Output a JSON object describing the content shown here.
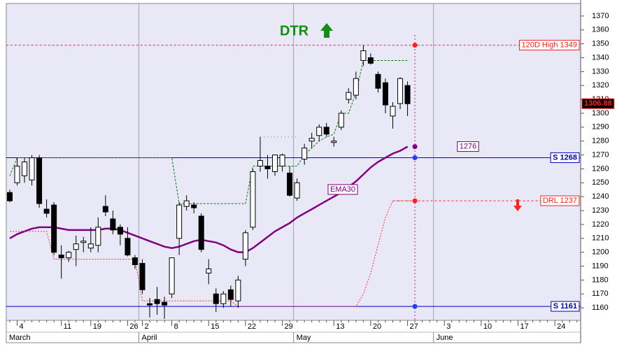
{
  "chart_data": {
    "type": "candlestick",
    "annotation": "DTR",
    "annotation_color": "#109010",
    "categories": [
      null,
      "4",
      null,
      null,
      null,
      null,
      null,
      "11",
      null,
      null,
      null,
      "19",
      null,
      null,
      null,
      null,
      "26",
      null,
      "2",
      null,
      null,
      null,
      "8",
      null,
      null,
      null,
      null,
      "15",
      null,
      null,
      null,
      null,
      "22",
      null,
      null,
      null,
      null,
      "29",
      null,
      null,
      null,
      null,
      null,
      null,
      "13",
      null,
      null,
      null,
      null,
      "20",
      null,
      null,
      null,
      null,
      "27",
      null,
      null,
      null,
      null,
      "3",
      null,
      null,
      null,
      null,
      "10",
      null,
      null,
      null,
      null,
      "17",
      null,
      null,
      null,
      null,
      "24",
      null,
      null,
      null
    ],
    "category_groups": [
      "March",
      null,
      null,
      null,
      null,
      null,
      null,
      null,
      null,
      null,
      null,
      null,
      null,
      null,
      null,
      null,
      null,
      null,
      "April",
      null,
      null,
      null,
      null,
      null,
      null,
      null,
      null,
      null,
      null,
      null,
      null,
      null,
      null,
      null,
      null,
      null,
      null,
      null,
      null,
      "May",
      null,
      null,
      null,
      null,
      null,
      null,
      null,
      null,
      null,
      null,
      null,
      null,
      null,
      null,
      null,
      null,
      null,
      null,
      "June",
      null,
      null,
      null,
      null,
      null,
      null,
      null,
      null,
      null,
      null,
      null,
      null,
      null,
      null,
      null,
      null,
      null,
      null,
      null
    ],
    "open": [
      1243,
      1250,
      1255,
      1252,
      1268,
      1231,
      1234,
      1198,
      1196,
      1202,
      1207,
      1203,
      1205,
      1233,
      1224,
      1218,
      1210,
      1196,
      1192,
      1163,
      1166,
      1164,
      1170,
      1210,
      1233,
      1234,
      1226,
      1185,
      1170,
      1163,
      1173,
      1165,
      1195,
      1218,
      1262,
      1262,
      1258,
      1262,
      1257,
      1239,
      1267,
      1280,
      1284,
      1290,
      1279,
      1290,
      1310,
      1313,
      1338,
      1340,
      1328,
      1322,
      1298,
      1307,
      1320,
      null,
      null,
      null,
      null,
      null,
      null,
      null,
      null,
      null,
      null,
      null,
      null,
      null,
      null,
      null,
      null,
      null,
      null,
      null,
      null,
      null,
      null,
      null
    ],
    "high": [
      1245,
      1268,
      1268,
      1270,
      1270,
      1238,
      1236,
      1205,
      1201,
      1212,
      1211,
      1218,
      1225,
      1241,
      1230,
      1220,
      1218,
      1198,
      1195,
      1167,
      1175,
      1168,
      1196,
      1236,
      1241,
      1236,
      1228,
      1195,
      1174,
      1172,
      1176,
      1183,
      1216,
      1260,
      1283,
      1270,
      1270,
      1271,
      1262,
      1253,
      1278,
      1286,
      1292,
      1293,
      1283,
      1302,
      1318,
      1330,
      1349,
      1343,
      1330,
      1325,
      1308,
      1326,
      1323,
      null,
      null,
      null,
      null,
      null,
      null,
      null,
      null,
      null,
      null,
      null,
      null,
      null,
      null,
      null,
      null,
      null,
      null,
      null,
      null,
      null,
      null,
      null
    ],
    "low": [
      1236,
      1248,
      1250,
      1248,
      1232,
      1225,
      1198,
      1181,
      1193,
      1190,
      1200,
      1200,
      1200,
      1226,
      1213,
      1205,
      1197,
      1188,
      1170,
      1153,
      1155,
      1152,
      1167,
      1198,
      1230,
      1228,
      1200,
      1177,
      1157,
      1160,
      1161,
      1160,
      1190,
      1216,
      1258,
      1253,
      1255,
      1258,
      1240,
      1237,
      1263,
      1275,
      1280,
      1283,
      1276,
      1288,
      1307,
      1310,
      1334,
      1335,
      1315,
      1300,
      1289,
      1303,
      1298,
      null,
      null,
      null,
      null,
      null,
      null,
      null,
      null,
      null,
      null,
      null,
      null,
      null,
      null,
      null,
      null,
      null,
      null,
      null,
      null,
      null,
      null,
      null
    ],
    "close": [
      1237,
      1262,
      1265,
      1268,
      1235,
      1228,
      1200,
      1196,
      1200,
      1206,
      1208,
      1206,
      1218,
      1229,
      1216,
      1213,
      1198,
      1191,
      1173,
      1162,
      1163,
      1162,
      1196,
      1234,
      1237,
      1232,
      1202,
      1188,
      1163,
      1170,
      1166,
      1180,
      1214,
      1258,
      1266,
      1260,
      1270,
      1270,
      1241,
      1250,
      1275,
      1282,
      1290,
      1285,
      1280,
      1300,
      1315,
      1325,
      1345,
      1336,
      1318,
      1306,
      1305,
      1325,
      1306.88,
      null,
      null,
      null,
      null,
      null,
      null,
      null,
      null,
      null,
      null,
      null,
      null,
      null,
      null,
      null,
      null,
      null,
      null,
      null,
      null,
      null,
      null,
      null
    ],
    "up_color": "#ffffff",
    "down_color": "#000000",
    "price_label_color": "#ff2020",
    "lines": [
      {
        "name": "EMA30",
        "color": "#800080",
        "width": 2.5,
        "dash": "none",
        "values": [
          1210,
          1213,
          1215,
          1217,
          1218,
          1218,
          1218,
          1217,
          1216,
          1216,
          1216,
          1216,
          1216,
          1217,
          1217,
          1216,
          1214,
          1212,
          1210,
          1208,
          1206,
          1204,
          1203,
          1204,
          1206,
          1208,
          1209,
          1208,
          1207,
          1205,
          1202,
          1200,
          1200,
          1203,
          1207,
          1211,
          1215,
          1218,
          1221,
          1225,
          1228,
          1231,
          1234,
          1237,
          1240,
          1243,
          1247,
          1251,
          1256,
          1261,
          1265,
          1268,
          1271,
          1273,
          1276,
          null,
          null,
          null,
          null,
          null,
          null,
          null,
          null,
          null,
          null,
          null,
          null,
          null,
          null,
          null,
          null,
          null,
          null,
          null,
          null,
          null,
          null,
          null
        ]
      },
      {
        "color": "#008000",
        "width": 1,
        "dash": "3,2",
        "values": [
          1255,
          1268,
          1268,
          1268,
          1268,
          1268,
          1268,
          1268,
          1268,
          1268,
          1268,
          1268,
          1268,
          1268,
          1268,
          1268,
          1268,
          1268,
          1268,
          1268,
          1268,
          1268,
          1268,
          1235,
          1235,
          1235,
          1235,
          1235,
          1235,
          1235,
          1235,
          1235,
          1235,
          1262,
          1262,
          1262,
          1262,
          1262,
          1262,
          1262,
          1270,
          1275,
          1280,
          1283,
          1285,
          1300,
          1300,
          1315,
          1338,
          1338,
          1338,
          1338,
          1338,
          1338,
          1338,
          null,
          null,
          null,
          null,
          null,
          null,
          null,
          null,
          null,
          null,
          null,
          null,
          null,
          null,
          null,
          null,
          null,
          null,
          null,
          null,
          null,
          null,
          null
        ]
      },
      {
        "color": "#ff3030",
        "width": 1,
        "dash": "2,2",
        "values": [
          1215,
          1215,
          1215,
          1215,
          1215,
          1215,
          1195,
          1195,
          1195,
          1195,
          1195,
          1195,
          1195,
          1195,
          1195,
          1195,
          1195,
          1195,
          1165,
          1165,
          1165,
          1165,
          1165,
          1165,
          1165,
          1165,
          1165,
          1165,
          1165,
          1165,
          1165,
          1161,
          1161,
          1161,
          1161,
          1161,
          1161,
          1161,
          1161,
          1161,
          1161,
          1161,
          1161,
          1161,
          1161,
          1161,
          1161,
          1161,
          1170,
          1185,
          1205,
          1225,
          1237,
          1237,
          1237,
          1237,
          null,
          null,
          null,
          null,
          null,
          null,
          null,
          null,
          null,
          null,
          null,
          null,
          null,
          null,
          null,
          null,
          null,
          null,
          null,
          null,
          null,
          null
        ]
      },
      {
        "color": "#808080",
        "width": 1,
        "dash": "1,4",
        "values": [
          null,
          null,
          null,
          null,
          null,
          null,
          null,
          null,
          null,
          null,
          null,
          null,
          null,
          null,
          null,
          null,
          null,
          null,
          null,
          null,
          null,
          null,
          null,
          null,
          null,
          null,
          null,
          null,
          null,
          null,
          null,
          null,
          null,
          null,
          1283,
          1283,
          1283,
          1283,
          1283,
          1283,
          null,
          null,
          null,
          null,
          null,
          null,
          null,
          null,
          null,
          null,
          null,
          null,
          null,
          null,
          null,
          null,
          null,
          null,
          null,
          null,
          null,
          null,
          null,
          null,
          null,
          null,
          null,
          null,
          null,
          null,
          null,
          null,
          null,
          null,
          null,
          null,
          null,
          null
        ]
      }
    ],
    "levels": [
      {
        "label": "120D High 1349",
        "value": 1349,
        "color": "#ff2020",
        "dash": "3,3",
        "dot": "#ff2020"
      },
      {
        "label": "S 1268",
        "value": 1268,
        "color": "#0000c0",
        "dash": "none",
        "dot": "#2040ff"
      },
      {
        "label": "DRL 1237",
        "value": 1237,
        "color": "#ff2020",
        "dash": "3,3",
        "dot": "#ff2020"
      },
      {
        "label": "S 1161",
        "value": 1161,
        "color": "#0000c0",
        "dash": "none",
        "dot": "#2040ff"
      }
    ],
    "ylim": [
      1151,
      1379
    ],
    "yticks": [
      1160,
      1170,
      1180,
      1190,
      1200,
      1210,
      1220,
      1230,
      1240,
      1250,
      1260,
      1270,
      1280,
      1290,
      1300,
      1310,
      1320,
      1330,
      1340,
      1350,
      1360,
      1370
    ],
    "background": "#e8e8f7"
  }
}
